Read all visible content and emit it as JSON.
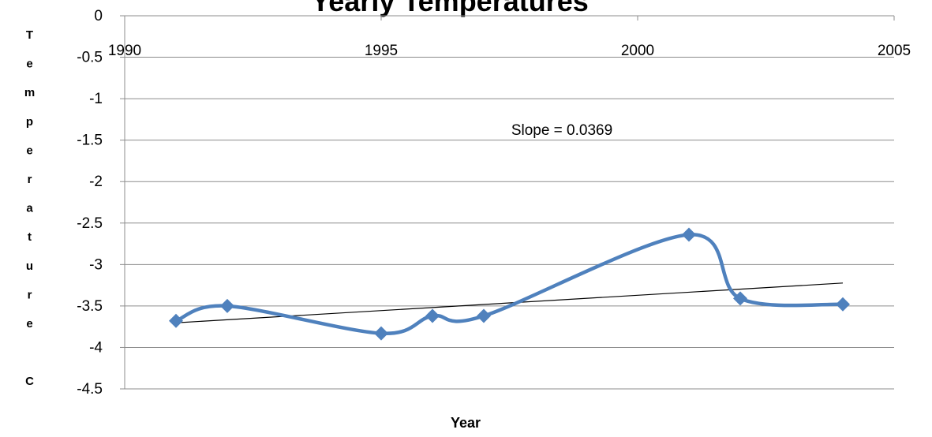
{
  "chart_data": {
    "type": "line",
    "title": "Yearly Temperatures",
    "x_label": "Year",
    "y_label": "Temperature C",
    "x": [
      1991,
      1992,
      1995,
      1996,
      1997,
      2001,
      2002,
      2004
    ],
    "series": [
      {
        "name": "Temperature",
        "color": "#4f81bd",
        "values": [
          -3.68,
          -3.5,
          -3.83,
          -3.62,
          -3.62,
          -2.64,
          -3.41,
          -3.48
        ]
      }
    ],
    "trendline": {
      "label": "Slope = 0.0369",
      "slope": 0.0369,
      "color": "#000000"
    },
    "xlim": [
      1990,
      2005
    ],
    "xticks": [
      1990,
      1995,
      2000,
      2005
    ],
    "ylim": [
      -4.5,
      0
    ],
    "yticks": [
      0,
      -0.5,
      -1,
      -1.5,
      -2,
      -2.5,
      -3,
      -3.5,
      -4,
      -4.5
    ],
    "grid": true,
    "smooth": true
  }
}
